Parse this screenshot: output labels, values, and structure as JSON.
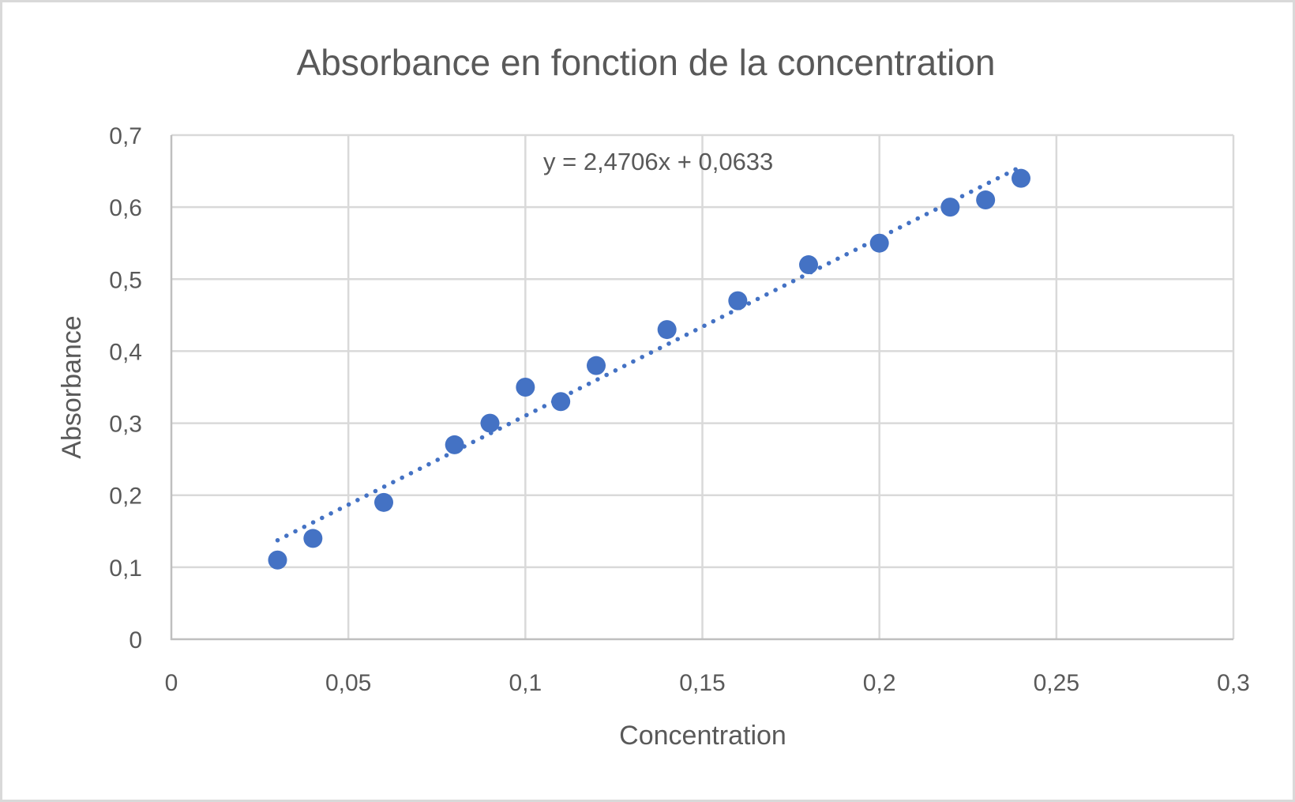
{
  "chart_data": {
    "type": "scatter",
    "title": "Absorbance en fonction de la concentration",
    "xlabel": "Concentration",
    "ylabel": "Absorbance",
    "xlim": [
      0,
      0.3
    ],
    "ylim": [
      0,
      0.7
    ],
    "x_ticks": [
      0,
      0.05,
      0.1,
      0.15,
      0.2,
      0.25,
      0.3
    ],
    "x_tick_labels": [
      "0",
      "0,05",
      "0,1",
      "0,15",
      "0,2",
      "0,25",
      "0,3"
    ],
    "y_ticks": [
      0,
      0.1,
      0.2,
      0.3,
      0.4,
      0.5,
      0.6,
      0.7
    ],
    "y_tick_labels": [
      "0",
      "0,1",
      "0,2",
      "0,3",
      "0,4",
      "0,5",
      "0,6",
      "0,7"
    ],
    "grid": true,
    "legend": null,
    "series": [
      {
        "name": "Absorbance",
        "color": "#4472C4",
        "x": [
          0.03,
          0.04,
          0.06,
          0.08,
          0.09,
          0.1,
          0.11,
          0.12,
          0.14,
          0.16,
          0.18,
          0.2,
          0.22,
          0.23,
          0.24
        ],
        "y": [
          0.11,
          0.14,
          0.19,
          0.27,
          0.3,
          0.35,
          0.33,
          0.38,
          0.43,
          0.47,
          0.52,
          0.55,
          0.6,
          0.61,
          0.64
        ]
      }
    ],
    "trendline": {
      "type": "linear",
      "style": "dotted",
      "color": "#4472C4",
      "slope": 2.4706,
      "intercept": 0.0633,
      "x_range": [
        0.03,
        0.24
      ],
      "equation_label": "y = 2,4706x + 0,0633"
    }
  },
  "colors": {
    "text": "#595959",
    "grid": "#d9d9d9",
    "axis": "#bfbfbf",
    "border": "#d9d9d9",
    "marker": "#4472C4"
  }
}
